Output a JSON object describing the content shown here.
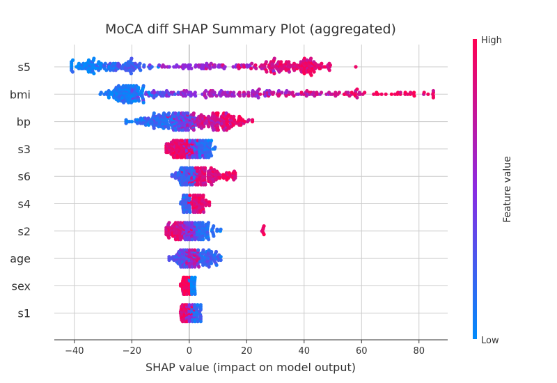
{
  "chart_data": {
    "type": "scatter",
    "title": "MoCA diff  SHAP Summary Plot (aggregated)",
    "xlabel": "SHAP value (impact on model output)",
    "xlim": [
      -47,
      90
    ],
    "x_ticks": [
      -40,
      -20,
      0,
      20,
      40,
      60,
      80
    ],
    "x_tick_labels": [
      "−40",
      "−20",
      "0",
      "20",
      "40",
      "60",
      "80"
    ],
    "grid": true,
    "colorbar": {
      "label": "Feature value",
      "high": "High",
      "low": "Low",
      "low_color": "#008bfb",
      "mid_color": "#8a2be2",
      "high_color": "#ff0052"
    },
    "features": [
      {
        "name": "s5",
        "min": -41,
        "max": 58,
        "clusters": [
          {
            "c": -35,
            "s": 3.5,
            "w": 0.2,
            "v": 0.05
          },
          {
            "c": -22,
            "s": 5,
            "w": 0.22,
            "v": 0.22
          },
          {
            "c": 8,
            "s": 10,
            "w": 0.18,
            "v": 0.55
          },
          {
            "c": 32,
            "s": 7,
            "w": 0.3,
            "v": 0.85
          },
          {
            "c": 43,
            "s": 4,
            "w": 0.1,
            "v": 0.92
          }
        ]
      },
      {
        "name": "bmi",
        "min": -31,
        "max": 85,
        "clusters": [
          {
            "c": -22,
            "s": 4,
            "w": 0.4,
            "v": 0.08
          },
          {
            "c": -10,
            "s": 6,
            "w": 0.12,
            "v": 0.35
          },
          {
            "c": 15,
            "s": 12,
            "w": 0.28,
            "v": 0.6
          },
          {
            "c": 40,
            "s": 10,
            "w": 0.12,
            "v": 0.8
          },
          {
            "c": 65,
            "s": 12,
            "w": 0.08,
            "v": 0.95
          }
        ]
      },
      {
        "name": "bp",
        "min": -22,
        "max": 22,
        "clusters": [
          {
            "c": -10,
            "s": 5,
            "w": 0.35,
            "v": 0.15
          },
          {
            "c": -2,
            "s": 2,
            "w": 0.2,
            "v": 0.4
          },
          {
            "c": 6,
            "s": 5,
            "w": 0.3,
            "v": 0.75
          },
          {
            "c": 14,
            "s": 4,
            "w": 0.15,
            "v": 0.92
          }
        ]
      },
      {
        "name": "s3",
        "min": -8,
        "max": 9,
        "clusters": [
          {
            "c": -3,
            "s": 2.2,
            "w": 0.4,
            "v": 0.9
          },
          {
            "c": 1,
            "s": 1.5,
            "w": 0.25,
            "v": 0.5
          },
          {
            "c": 4,
            "s": 2,
            "w": 0.35,
            "v": 0.15
          }
        ]
      },
      {
        "name": "s6",
        "min": -6,
        "max": 16,
        "clusters": [
          {
            "c": -1,
            "s": 1.5,
            "w": 0.55,
            "v": 0.2
          },
          {
            "c": 5,
            "s": 3,
            "w": 0.4,
            "v": 0.85
          },
          {
            "c": 14,
            "s": 1.5,
            "w": 0.05,
            "v": 0.95
          }
        ]
      },
      {
        "name": "s4",
        "min": -3,
        "max": 7,
        "clusters": [
          {
            "c": -1,
            "s": 0.6,
            "w": 0.6,
            "v": 0.2
          },
          {
            "c": 3,
            "s": 1.5,
            "w": 0.4,
            "v": 0.88
          }
        ]
      },
      {
        "name": "s2",
        "min": -8,
        "max": 26,
        "clusters": [
          {
            "c": -4,
            "s": 2.5,
            "w": 0.25,
            "v": 0.85
          },
          {
            "c": 0,
            "s": 1,
            "w": 0.45,
            "v": 0.5
          },
          {
            "c": 4,
            "s": 2.5,
            "w": 0.28,
            "v": 0.15
          },
          {
            "c": 26,
            "s": 0.3,
            "w": 0.02,
            "v": 0.95
          }
        ]
      },
      {
        "name": "age",
        "min": -7,
        "max": 11,
        "clusters": [
          {
            "c": -2,
            "s": 2,
            "w": 0.35,
            "v": 0.3
          },
          {
            "c": 1,
            "s": 1,
            "w": 0.45,
            "v": 0.7
          },
          {
            "c": 6,
            "s": 2.5,
            "w": 0.2,
            "v": 0.2
          }
        ]
      },
      {
        "name": "sex",
        "min": -3,
        "max": 2,
        "clusters": [
          {
            "c": -1,
            "s": 0.6,
            "w": 0.5,
            "v": 0.95
          },
          {
            "c": 1.2,
            "s": 0.5,
            "w": 0.5,
            "v": 0.05
          }
        ]
      },
      {
        "name": "s1",
        "min": -3,
        "max": 4,
        "clusters": [
          {
            "c": -1,
            "s": 1,
            "w": 0.4,
            "v": 0.9
          },
          {
            "c": 0,
            "s": 0.6,
            "w": 0.3,
            "v": 0.5
          },
          {
            "c": 2,
            "s": 1,
            "w": 0.3,
            "v": 0.15
          }
        ]
      }
    ]
  }
}
